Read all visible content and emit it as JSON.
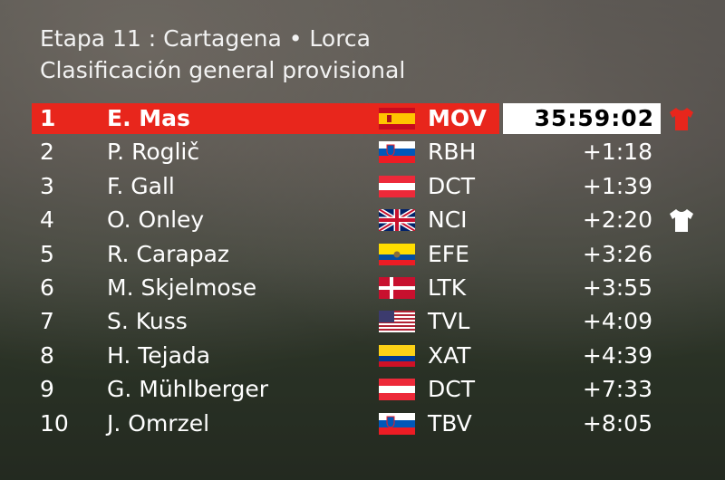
{
  "header": {
    "title": "Etapa 11 : Cartagena • Lorca",
    "subtitle": "Clasificación general provisional"
  },
  "table": {
    "rows": [
      {
        "rank": "1",
        "rider": "E. Mas",
        "team": "MOV",
        "time": "35:59:02"
      },
      {
        "rank": "2",
        "rider": "P. Roglič",
        "team": "RBH",
        "time": "+1:18"
      },
      {
        "rank": "3",
        "rider": "F. Gall",
        "team": "DCT",
        "time": "+1:39"
      },
      {
        "rank": "4",
        "rider": "O. Onley",
        "team": "NCI",
        "time": "+2:20"
      },
      {
        "rank": "5",
        "rider": "R. Carapaz",
        "team": "EFE",
        "time": "+3:26"
      },
      {
        "rank": "6",
        "rider": "M. Skjelmose",
        "team": "LTK",
        "time": "+3:55"
      },
      {
        "rank": "7",
        "rider": "S. Kuss",
        "team": "TVL",
        "time": "+4:09"
      },
      {
        "rank": "8",
        "rider": "H. Tejada",
        "team": "XAT",
        "time": "+4:39"
      },
      {
        "rank": "9",
        "rider": "G. Mühlberger",
        "team": "DCT",
        "time": "+7:33"
      },
      {
        "rank": "10",
        "rider": "J. Omrzel",
        "team": "TBV",
        "time": "+8:05"
      }
    ]
  }
}
